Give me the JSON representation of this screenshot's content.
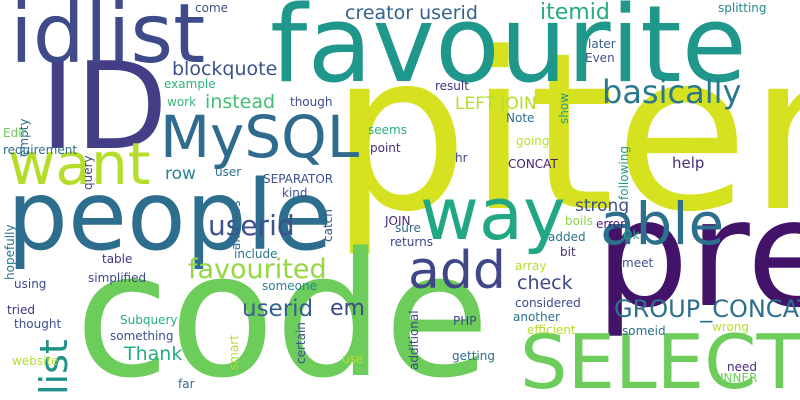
{
  "words": [
    {
      "text": "pitem",
      "color": "#d6e21f"
    },
    {
      "text": "code",
      "color": "#6ccd5a"
    },
    {
      "text": "pre",
      "color": "#43136a"
    },
    {
      "text": "favourite",
      "color": "#1f978b"
    },
    {
      "text": "ID",
      "color": "#433e85"
    },
    {
      "text": "people",
      "color": "#2d6e8e"
    },
    {
      "text": "idlist",
      "color": "#3e4a89"
    },
    {
      "text": "SELECT",
      "color": "#6ccd5a"
    },
    {
      "text": "way",
      "color": "#22a785"
    },
    {
      "text": "want",
      "color": "#b5de2b"
    },
    {
      "text": "MySQL",
      "color": "#2f6b8e"
    },
    {
      "text": "able",
      "color": "#2d708e"
    },
    {
      "text": "add",
      "color": "#3f4788"
    },
    {
      "text": "list",
      "color": "#21918c"
    },
    {
      "text": "basically",
      "color": "#2a788e"
    },
    {
      "text": "favourited",
      "color": "#93d741"
    },
    {
      "text": "GROUP_CONCAT",
      "color": "#2d708e"
    },
    {
      "text": "userid",
      "color": "#3b528b"
    },
    {
      "text": "userid",
      "color": "#355f8d"
    },
    {
      "text": "itemid",
      "color": "#25ab82"
    },
    {
      "text": "creator userid",
      "color": "#33638d"
    },
    {
      "text": "blockquote",
      "color": "#3b528b"
    },
    {
      "text": "instead",
      "color": "#42be71"
    },
    {
      "text": "LEFT JOIN",
      "color": "#b5de2b"
    },
    {
      "text": "Thank",
      "color": "#27ad81"
    },
    {
      "text": "em",
      "color": "#3e4a89"
    },
    {
      "text": "check",
      "color": "#3f4788"
    },
    {
      "text": "strong",
      "color": "#3b528b"
    },
    {
      "text": "row",
      "color": "#25848e"
    },
    {
      "text": "help",
      "color": "#472c7a"
    },
    {
      "text": "come",
      "color": "#3b528b"
    },
    {
      "text": "splitting",
      "color": "#23898e"
    },
    {
      "text": "later",
      "color": "#355f8d"
    },
    {
      "text": "Even",
      "color": "#3b528b"
    },
    {
      "text": "show",
      "color": "#1f9e89"
    },
    {
      "text": "example",
      "color": "#2fb47c"
    },
    {
      "text": "result",
      "color": "#46327e"
    },
    {
      "text": "work",
      "color": "#35b779"
    },
    {
      "text": "though",
      "color": "#3e4989"
    },
    {
      "text": "query",
      "color": "#3f4788"
    },
    {
      "text": "empty",
      "color": "#31668e"
    },
    {
      "text": "Note",
      "color": "#2e6f8e"
    },
    {
      "text": "going",
      "color": "#b8de29"
    },
    {
      "text": "seems",
      "color": "#29af7f"
    },
    {
      "text": "point",
      "color": "#472d7b"
    },
    {
      "text": "hr",
      "color": "#3e4989"
    },
    {
      "text": "CONCAT",
      "color": "#481d6f"
    },
    {
      "text": "following",
      "color": "#1e9c89"
    },
    {
      "text": "Edit",
      "color": "#6ccd5a"
    },
    {
      "text": "requirement",
      "color": "#2e6e8e"
    },
    {
      "text": "user",
      "color": "#2d708e"
    },
    {
      "text": "SEPARATOR",
      "color": "#3b528b"
    },
    {
      "text": "kind",
      "color": "#3b528b"
    },
    {
      "text": "error",
      "color": "#481d6f"
    },
    {
      "text": "catch",
      "color": "#3a538b"
    },
    {
      "text": "Ok",
      "color": "#22a884"
    },
    {
      "text": "boils",
      "color": "#8bd646"
    },
    {
      "text": "JOIN",
      "color": "#482576"
    },
    {
      "text": "sure",
      "color": "#31688e"
    },
    {
      "text": "answers",
      "color": "#2f6c8e"
    },
    {
      "text": "include",
      "color": "#2a778e"
    },
    {
      "text": "added",
      "color": "#2c728e"
    },
    {
      "text": "returns",
      "color": "#3e4989"
    },
    {
      "text": "hopefully",
      "color": "#2a768e"
    },
    {
      "text": "table",
      "color": "#46337f"
    },
    {
      "text": "bit",
      "color": "#482878"
    },
    {
      "text": "array",
      "color": "#b5de2b"
    },
    {
      "text": "meet",
      "color": "#3b528b"
    },
    {
      "text": "simplified",
      "color": "#3e4a89"
    },
    {
      "text": "using",
      "color": "#3e4a89"
    },
    {
      "text": "someone",
      "color": "#26828e"
    },
    {
      "text": "considered",
      "color": "#3e4989"
    },
    {
      "text": "tried",
      "color": "#46327e"
    },
    {
      "text": "thought",
      "color": "#3b528b"
    },
    {
      "text": "Subquery",
      "color": "#26ad81"
    },
    {
      "text": "something",
      "color": "#3b528b"
    },
    {
      "text": "additional",
      "color": "#3e4989"
    },
    {
      "text": "certain",
      "color": "#3b528b"
    },
    {
      "text": "PHP",
      "color": "#3e4989"
    },
    {
      "text": "another",
      "color": "#2c728e"
    },
    {
      "text": "efficient",
      "color": "#b5de2b"
    },
    {
      "text": "wrong",
      "color": "#b5de2b"
    },
    {
      "text": "someid",
      "color": "#2e6f8e"
    },
    {
      "text": "smart",
      "color": "#b5de2b"
    },
    {
      "text": "website",
      "color": "#b5de2b"
    },
    {
      "text": "use",
      "color": "#b5de2b"
    },
    {
      "text": "getting",
      "color": "#2e6e8e"
    },
    {
      "text": "need",
      "color": "#472d7b"
    },
    {
      "text": "far",
      "color": "#2f6c8e"
    },
    {
      "text": "INNER",
      "color": "#6ccd5a"
    }
  ]
}
